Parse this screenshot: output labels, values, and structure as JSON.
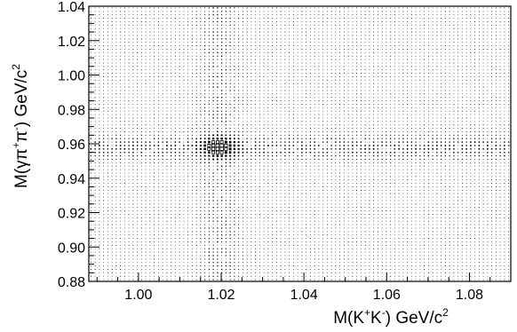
{
  "chart_data": {
    "type": "scatter",
    "subtype": "2d-histogram-box",
    "title": "",
    "xlabel": {
      "base": "M(K",
      "sup1": "+",
      "mid": "K",
      "sup2": "-",
      "end": ") GeV/c",
      "sup3": "2"
    },
    "ylabel": {
      "base": "M(γπ",
      "sup1": "+",
      "mid": "π",
      "sup2": "-",
      "end": ") GeV/c",
      "sup3": "2"
    },
    "xlim": [
      0.988,
      1.09
    ],
    "ylim": [
      0.88,
      1.04
    ],
    "x_ticks": [
      "1.00",
      "1.02",
      "1.04",
      "1.06",
      "1.08"
    ],
    "x_tick_values": [
      1.0,
      1.02,
      1.04,
      1.06,
      1.08
    ],
    "y_ticks": [
      "0.88",
      "0.90",
      "0.92",
      "0.94",
      "0.96",
      "0.98",
      "1.00",
      "1.02",
      "1.04"
    ],
    "y_tick_values": [
      0.88,
      0.9,
      0.92,
      0.94,
      0.96,
      0.98,
      1.0,
      1.02,
      1.04
    ],
    "x_bins": 100,
    "y_bins": 80,
    "signal_peak": {
      "x": 1.0195,
      "y": 0.958
    },
    "signal_width": {
      "x": 0.0025,
      "y": 0.0035
    },
    "band_x_width": 0.0035,
    "band_y_width": 0.0045,
    "background_level": 0.12,
    "grid": false,
    "legend": "none",
    "colors": {
      "box": "#000000",
      "frame": "#000000",
      "background": "#ffffff"
    }
  }
}
